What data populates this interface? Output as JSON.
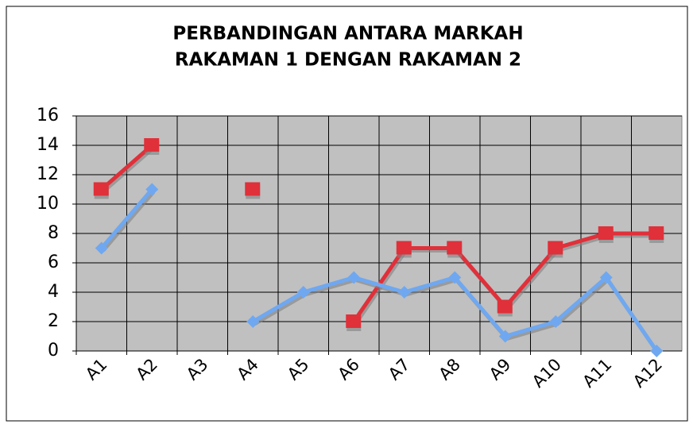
{
  "chart_data": {
    "type": "line",
    "title": [
      "PERBANDINGAN ANTARA MARKAH",
      "RAKAMAN 1 DENGAN RAKAMAN 2"
    ],
    "categories": [
      "A1",
      "A2",
      "A3",
      "A4",
      "A5",
      "A6",
      "A7",
      "A8",
      "A9",
      "A10",
      "A11",
      "A12"
    ],
    "series": [
      {
        "color": "#e0303a",
        "marker": "square",
        "values": [
          11,
          14,
          null,
          11,
          null,
          2,
          7,
          7,
          3,
          7,
          8,
          8
        ]
      },
      {
        "color": "#6fa8f0",
        "marker": "diamond",
        "values": [
          7,
          11,
          null,
          2,
          4,
          5,
          4,
          5,
          1,
          2,
          5,
          0
        ]
      }
    ],
    "ylim": [
      0,
      16
    ],
    "yticks": [
      0,
      2,
      4,
      6,
      8,
      10,
      12,
      14,
      16
    ],
    "grid": true
  }
}
